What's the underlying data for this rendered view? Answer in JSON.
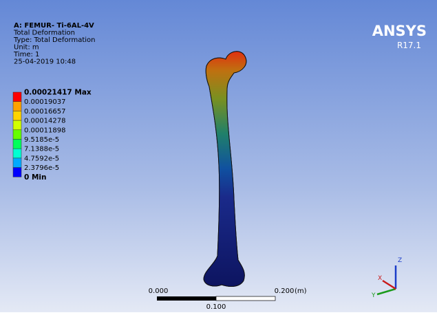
{
  "header": {
    "lines": [
      "A: FEMUR- Ti-6AL-4V",
      "Total Deformation",
      "Type: Total Deformation",
      "Unit: m",
      "Time: 1",
      "25-04-2019 10:48"
    ]
  },
  "legend": {
    "labels": [
      "0.00021417 Max",
      "0.00019037",
      "0.00016657",
      "0.00014278",
      "0.00011898",
      "9.5185e-5",
      "7.1388e-5",
      "4.7592e-5",
      "2.3796e-5",
      "0 Min"
    ],
    "colors": [
      "#ff0000",
      "#ffa200",
      "#ffd400",
      "#d2ff00",
      "#66ff00",
      "#00ff5a",
      "#00ffd2",
      "#00aaff",
      "#0000ff"
    ]
  },
  "logo": {
    "name": "ANSYS",
    "version": "R17.1"
  },
  "scale_bar": {
    "start": "0.000",
    "end": "0.200",
    "unit": "(m)",
    "middle": "0.100"
  },
  "triad": {
    "z": "Z",
    "y": "Y",
    "x": "X"
  }
}
